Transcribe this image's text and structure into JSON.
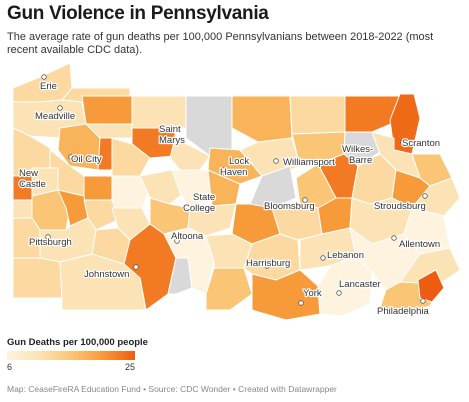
{
  "title": "Gun Violence in Pennsylvania",
  "subtitle": "The average rate of gun deaths per 100,000 Pennsylvanians between 2018-2022 (most recent available CDC data).",
  "legend": {
    "title": "Gun Deaths per 100,000 people",
    "min": "6",
    "max": "25",
    "colors": [
      "#fdf3df",
      "#fce3b6",
      "#fbc576",
      "#f79b3a",
      "#ee5c12"
    ],
    "no_data_color": "#d9d9d9"
  },
  "cities": [
    {
      "name": "Erie"
    },
    {
      "name": "Meadville"
    },
    {
      "name": "Saint Marys"
    },
    {
      "name": "Oil City"
    },
    {
      "name": "New Castle"
    },
    {
      "name": "Lock Haven"
    },
    {
      "name": "Williamsport"
    },
    {
      "name": "Wilkes-Barre"
    },
    {
      "name": "Scranton"
    },
    {
      "name": "State College"
    },
    {
      "name": "Bloomsburg"
    },
    {
      "name": "Stroudsburg"
    },
    {
      "name": "Pittsburgh"
    },
    {
      "name": "Altoona"
    },
    {
      "name": "Allentown"
    },
    {
      "name": "Johnstown"
    },
    {
      "name": "Harrisburg"
    },
    {
      "name": "Lebanon"
    },
    {
      "name": "Lancaster"
    },
    {
      "name": "York"
    },
    {
      "name": "Philadelphia"
    }
  ],
  "footer": "Map: CeaseFireRA Education Fund • Source: CDC Wonder • Created with Datawrapper"
}
